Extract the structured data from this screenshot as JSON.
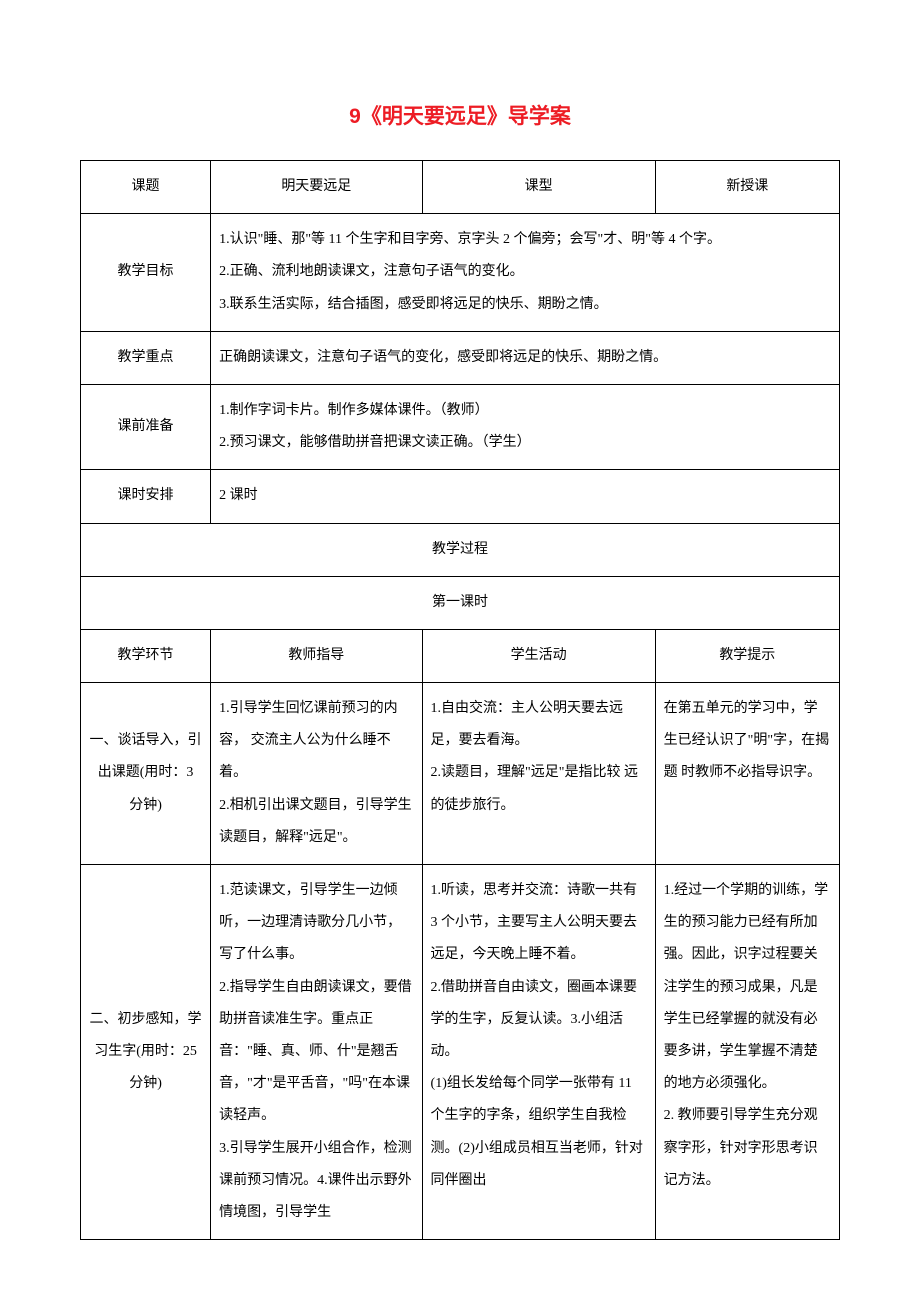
{
  "title": "9《明天要远足》导学案",
  "header": {
    "topic_label": "课题",
    "topic_value": "明天要远足",
    "type_label": "课型",
    "type_value": "新授课"
  },
  "goals": {
    "label": "教学目标",
    "content": "1.认识\"睡、那\"等 11 个生字和目字旁、京字头 2 个偏旁；会写\"才、明\"等 4 个字。\n2.正确、流利地朗读课文，注意句子语气的变化。\n3.联系生活实际，结合插图，感受即将远足的快乐、期盼之情。"
  },
  "focus": {
    "label": "教学重点",
    "content": "正确朗读课文，注意句子语气的变化，感受即将远足的快乐、期盼之情。"
  },
  "prep": {
    "label": "课前准备",
    "content": "1.制作字词卡片。制作多媒体课件。（教师）\n2.预习课文，能够借助拼音把课文读正确。（学生）"
  },
  "schedule": {
    "label": "课时安排",
    "content": "2 课时"
  },
  "process_header": "教学过程",
  "lesson1_header": "第一课时",
  "columns": {
    "c1": "教学环节",
    "c2": "教师指导",
    "c3": "学生活动",
    "c4": "教学提示"
  },
  "row1": {
    "c1": "一、谈话导入，引出课题(用时：3 分钟)",
    "c2": "1.引导学生回忆课前预习的内容，  交流主人公为什么睡不着。\n2.相机引出课文题目，引导学生 读题目，解释\"远足\"。",
    "c3": "1.自由交流：主人公明天要去远足，要去看海。\n2.读题目，理解\"远足\"是指比较 远的徒步旅行。",
    "c4": "在第五单元的学习中，学生已经认识了\"明\"字，在揭题 时教师不必指导识字。"
  },
  "row2": {
    "c1": "二、初步感知，学习生字(用时：25 分钟)",
    "c2": "1.范读课文，引导学生一边倾听，一边理清诗歌分几小节，写了什么事。\n2.指导学生自由朗读课文，要借 助拼音读准生字。重点正音：\"睡、真、师、什\"是翘舌音，\"才\"是平舌音，\"吗\"在本课读轻声。\n3.引导学生展开小组合作，检测课前预习情况。4.课件出示野外情境图，引导学生",
    "c3": "1.听读，思考并交流：诗歌一共有 3 个小节，主要写主人公明天要去远足，今天晚上睡不着。\n2.借助拼音自由读文，圈画本课要学的生字，反复认读。3.小组活动。\n(1)组长发给每个同学一张带有 11 个生字的字条，组织学生自我检测。(2)小组成员相互当老师，针对同伴圈出",
    "c4": "1.经过一个学期的训练，学生的预习能力已经有所加强。因此，识字过程要关注学生的预习成果，凡是学生已经掌握的就没有必要多讲，学生掌握不清楚的地方必须强化。\n2. 教师要引导学生充分观察字形，针对字形思考识记方法。"
  }
}
